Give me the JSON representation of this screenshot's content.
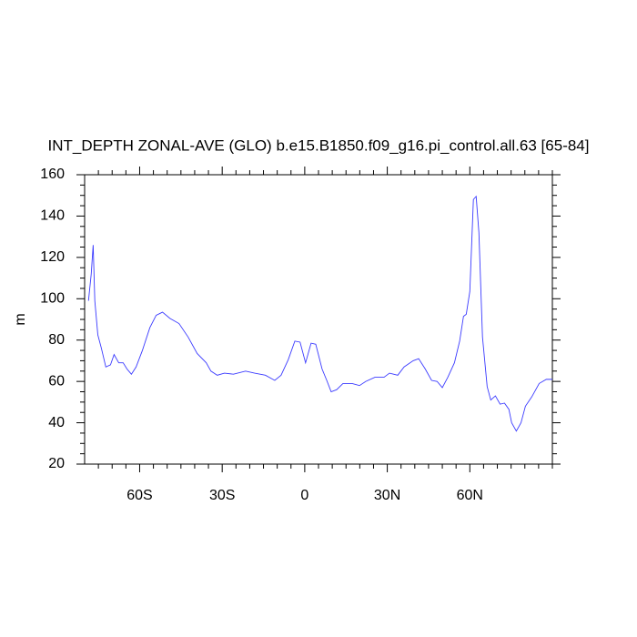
{
  "chart_data": {
    "type": "line",
    "title": "INT_DEPTH ZONAL-AVE (GLO) b.e15.B1850.f09_g16.pi_control.all.63 [65-84]",
    "y_label": "m",
    "xlim": [
      -80,
      90
    ],
    "ylim": [
      20,
      160
    ],
    "xticks": [
      {
        "value": -60,
        "label": "60S"
      },
      {
        "value": -30,
        "label": "30S"
      },
      0,
      {
        "value": 30,
        "label": "30N"
      },
      {
        "value": 60,
        "label": "60N"
      }
    ],
    "yticks": [
      20,
      40,
      60,
      80,
      100,
      120,
      140,
      160
    ],
    "xminorticks": [
      -75,
      -70,
      -65,
      -55,
      -50,
      -45,
      -40,
      -35,
      -25,
      -20,
      -15,
      -10,
      -5,
      5,
      10,
      15,
      20,
      25,
      35,
      40,
      45,
      50,
      55,
      65,
      70,
      75,
      80,
      85,
      90
    ],
    "yminorticks": [
      25,
      30,
      35,
      45,
      50,
      55,
      65,
      70,
      75,
      85,
      90,
      95,
      105,
      110,
      115,
      125,
      130,
      135,
      145,
      150,
      155
    ],
    "series": [
      {
        "color": "#3a3aff",
        "x": [
          -78.6,
          -77.6,
          -76.9,
          -76.3,
          -75.2,
          -73.9,
          -72.3,
          -70.6,
          -69.3,
          -67.6,
          -66,
          -64.6,
          -63,
          -61.3,
          -59,
          -56.3,
          -54,
          -51.7,
          -49,
          -45.7,
          -42.4,
          -39.1,
          -35.8,
          -34.1,
          -31.8,
          -29.2,
          -25.9,
          -21.5,
          -18.2,
          -14.3,
          -10.9,
          -8.6,
          -6,
          -3.6,
          -1.7,
          0.3,
          2.3,
          4,
          6.3,
          8,
          9.6,
          11.6,
          13.9,
          17.2,
          19.9,
          22.2,
          25.5,
          28.8,
          30.8,
          33.8,
          36.1,
          39.4,
          41.4,
          43.8,
          46.1,
          48.1,
          50,
          52,
          54.4,
          56.3,
          57.7,
          58.7,
          60,
          61.3,
          62.3,
          63.3,
          64.6,
          66.3,
          67.6,
          69.3,
          71,
          72.6,
          74.2,
          75.2,
          76.9,
          78.6,
          80.2,
          82.5,
          85.2,
          87.8,
          90
        ],
        "values": [
          99,
          112,
          126,
          99,
          82.5,
          76,
          67,
          68,
          73,
          69,
          69,
          66,
          63.5,
          67,
          75,
          86,
          92,
          93.5,
          90.5,
          88,
          81.5,
          73.5,
          69,
          65,
          63,
          64,
          63.5,
          65,
          64,
          63,
          60.5,
          63,
          70.5,
          79.5,
          79,
          69,
          78.5,
          78,
          66,
          60.5,
          55,
          56,
          59,
          59,
          58,
          60,
          62,
          62,
          64,
          63,
          67,
          70,
          71,
          66,
          60.5,
          60,
          57,
          62,
          69,
          79.5,
          91.5,
          92.5,
          103.5,
          148,
          149.5,
          132,
          81.5,
          57.5,
          51,
          53,
          49,
          49.5,
          46.5,
          40,
          36,
          40,
          48,
          52.5,
          59,
          61,
          61
        ]
      }
    ]
  }
}
